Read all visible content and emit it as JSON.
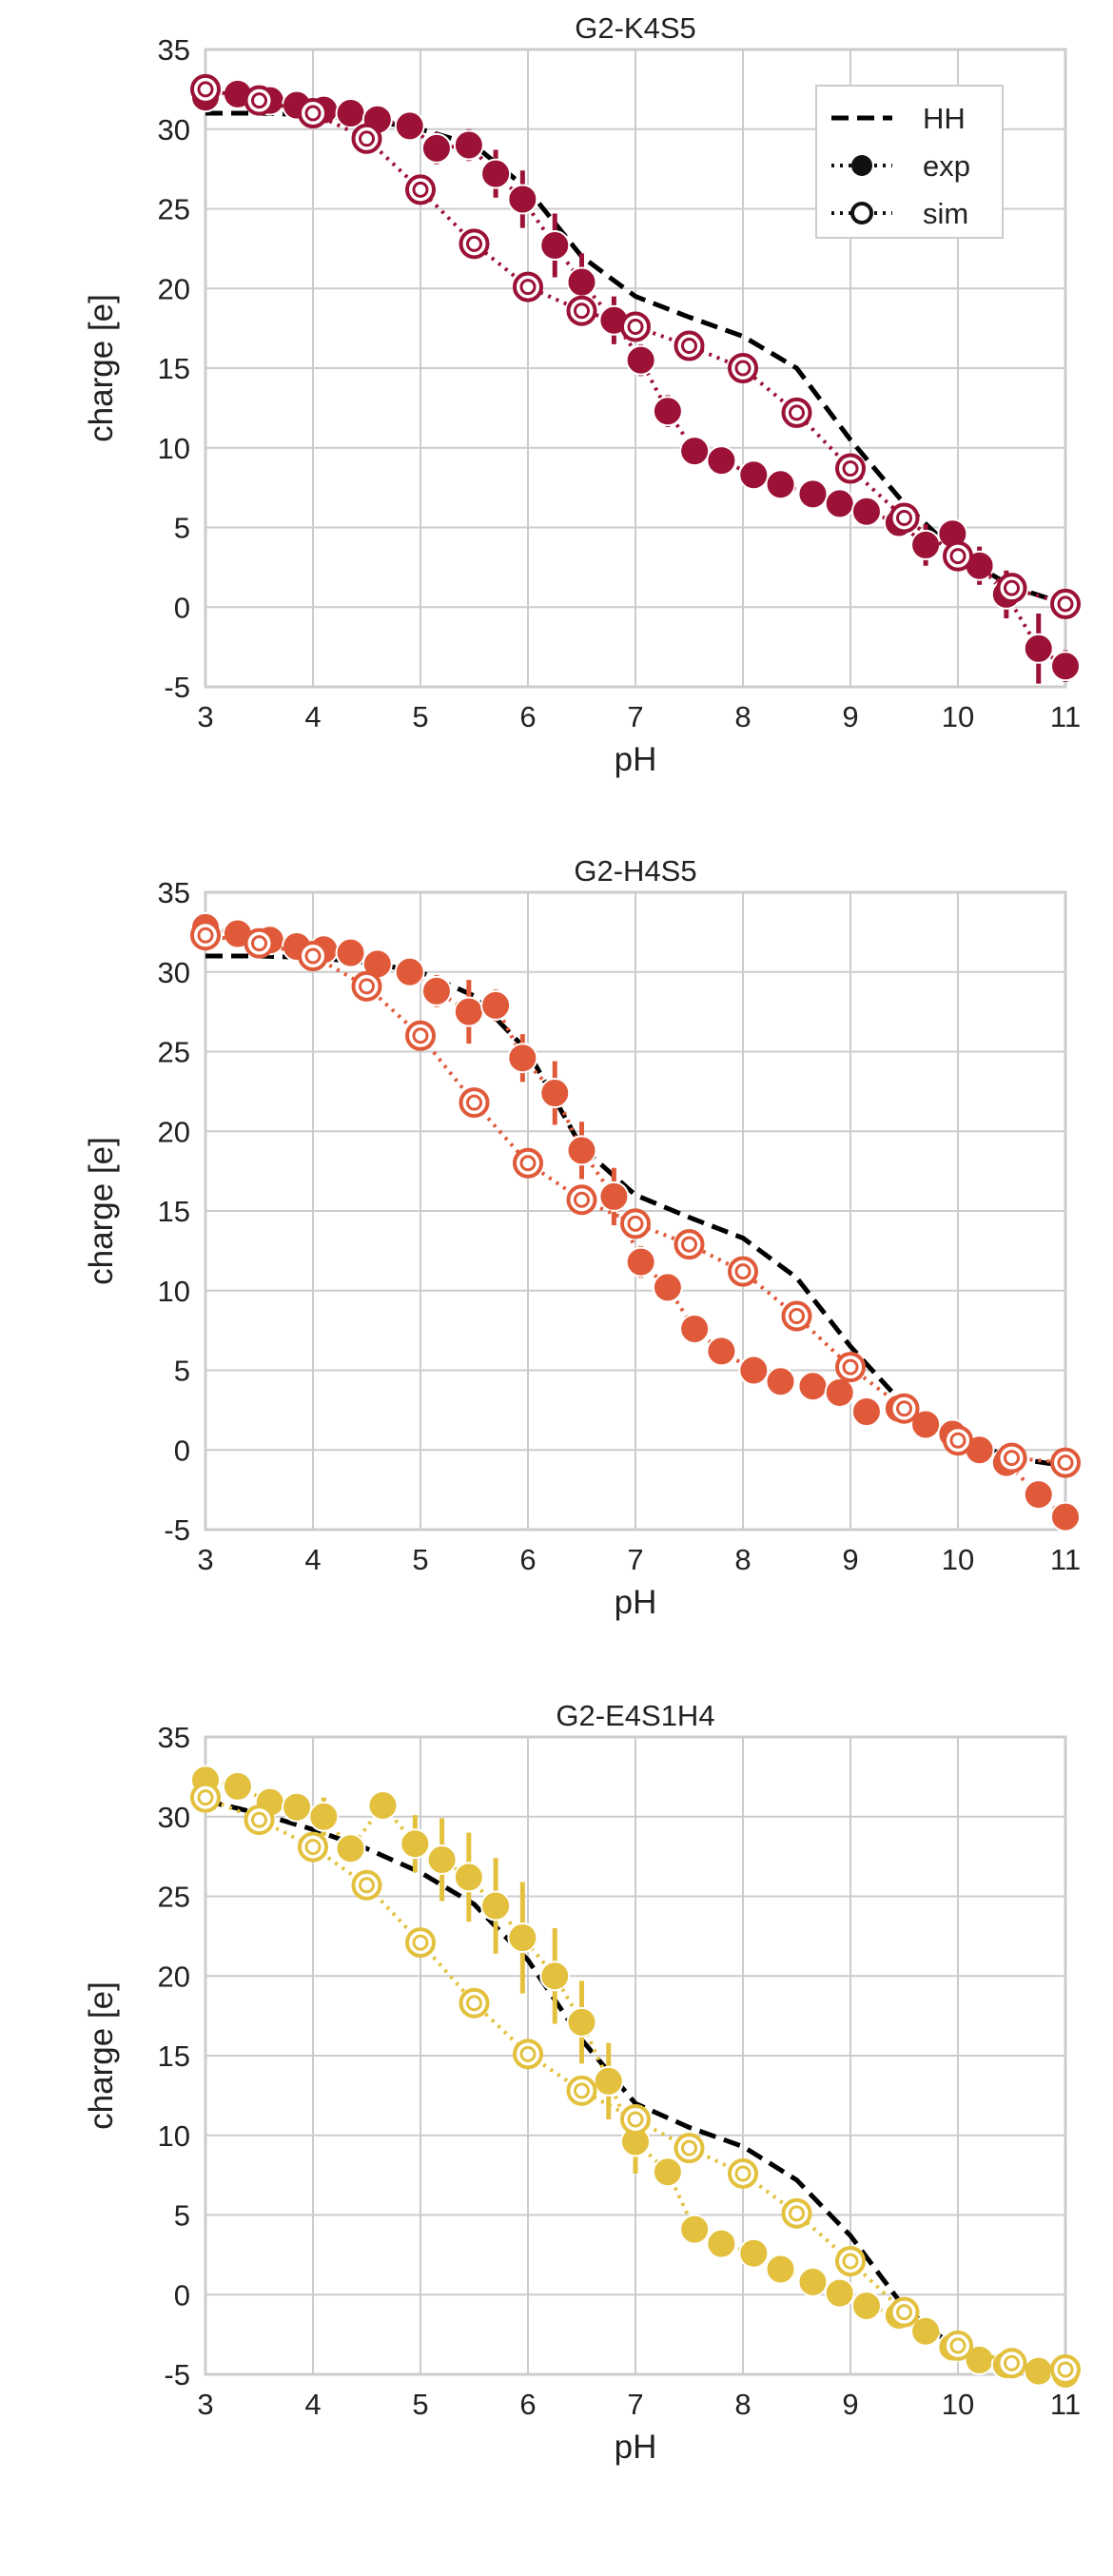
{
  "colors": {
    "hh": "#000000",
    "grid": "#cccccc",
    "frame": "#cccccc"
  },
  "chart_data": [
    {
      "type": "line",
      "title": "G2-K4S5",
      "xlabel": "pH",
      "ylabel": "charge [e]",
      "xlim": [
        3,
        11
      ],
      "ylim": [
        -5,
        35
      ],
      "xticks": [
        3,
        4,
        5,
        6,
        7,
        8,
        9,
        10,
        11
      ],
      "yticks": [
        -5,
        0,
        5,
        10,
        15,
        20,
        25,
        30,
        35
      ],
      "grid": true,
      "color": "#9b1236",
      "legend": {
        "placement": "top-right",
        "entries": [
          "HH",
          "exp",
          "sim"
        ]
      },
      "series": [
        {
          "name": "HH",
          "style": "dashed",
          "x": [
            3.0,
            3.5,
            4.0,
            4.5,
            5.0,
            5.5,
            6.0,
            6.5,
            7.0,
            7.5,
            8.0,
            8.5,
            9.0,
            9.5,
            10.0,
            10.5,
            11.0
          ],
          "y": [
            31.0,
            31.0,
            30.9,
            30.6,
            30.0,
            29.0,
            26.2,
            22.0,
            19.5,
            18.2,
            17.0,
            15.0,
            10.5,
            6.5,
            3.3,
            1.3,
            0.2
          ]
        },
        {
          "name": "exp",
          "style": "dotted-filled",
          "x": [
            3.0,
            3.3,
            3.6,
            3.85,
            4.1,
            4.35,
            4.6,
            4.9,
            5.15,
            5.45,
            5.7,
            5.95,
            6.25,
            6.5,
            6.8,
            7.05,
            7.3,
            7.55,
            7.8,
            8.1,
            8.35,
            8.65,
            8.9,
            9.15,
            9.45,
            9.7,
            9.95,
            10.2,
            10.45,
            10.75,
            11.0
          ],
          "y": [
            32.0,
            32.2,
            31.8,
            31.5,
            31.2,
            31.0,
            30.6,
            30.2,
            28.8,
            29.0,
            27.2,
            25.6,
            22.7,
            20.4,
            18.0,
            15.5,
            12.3,
            9.8,
            9.2,
            8.3,
            7.7,
            7.1,
            6.5,
            6.0,
            5.3,
            3.9,
            4.6,
            2.6,
            0.8,
            -2.6,
            -3.7
          ],
          "errors": [
            0.4,
            0.3,
            0.4,
            0.3,
            0.4,
            0.3,
            0.4,
            0.4,
            1.0,
            1.0,
            1.5,
            1.8,
            2.0,
            1.8,
            1.5,
            1.0,
            1.0,
            0.5,
            0.5,
            0.5,
            0.5,
            0.5,
            0.5,
            0.5,
            0.5,
            1.3,
            0.6,
            1.2,
            1.5,
            2.2,
            1.0
          ]
        },
        {
          "name": "sim",
          "style": "dotted-open",
          "x": [
            3.0,
            3.5,
            4.0,
            4.5,
            5.0,
            5.5,
            6.0,
            6.5,
            7.0,
            7.5,
            8.0,
            8.5,
            9.0,
            9.5,
            10.0,
            10.5,
            11.0
          ],
          "y": [
            32.5,
            31.8,
            31.0,
            29.4,
            26.2,
            22.8,
            20.1,
            18.6,
            17.6,
            16.4,
            15.0,
            12.2,
            8.7,
            5.6,
            3.2,
            1.2,
            0.2
          ]
        }
      ]
    },
    {
      "type": "line",
      "title": "G2-H4S5",
      "xlabel": "pH",
      "ylabel": "charge [e]",
      "xlim": [
        3,
        11
      ],
      "ylim": [
        -5,
        35
      ],
      "xticks": [
        3,
        4,
        5,
        6,
        7,
        8,
        9,
        10,
        11
      ],
      "yticks": [
        -5,
        0,
        5,
        10,
        15,
        20,
        25,
        30,
        35
      ],
      "grid": true,
      "color": "#e05a3a",
      "series": [
        {
          "name": "HH",
          "style": "dashed",
          "x": [
            3.0,
            3.5,
            4.0,
            4.5,
            5.0,
            5.5,
            6.0,
            6.5,
            7.0,
            7.5,
            8.0,
            8.5,
            9.0,
            9.5,
            10.0,
            10.5,
            11.0
          ],
          "y": [
            31.0,
            31.0,
            30.9,
            30.6,
            30.0,
            28.5,
            25.0,
            19.0,
            16.0,
            14.6,
            13.3,
            10.8,
            6.5,
            2.8,
            0.8,
            -0.5,
            -1.0
          ]
        },
        {
          "name": "exp",
          "style": "dotted-filled",
          "x": [
            3.0,
            3.3,
            3.6,
            3.85,
            4.1,
            4.35,
            4.6,
            4.9,
            5.15,
            5.45,
            5.7,
            5.95,
            6.25,
            6.5,
            6.8,
            7.05,
            7.3,
            7.55,
            7.8,
            8.1,
            8.35,
            8.65,
            8.9,
            9.15,
            9.45,
            9.7,
            9.95,
            10.2,
            10.45,
            10.75,
            11.0
          ],
          "y": [
            32.8,
            32.4,
            32.0,
            31.6,
            31.4,
            31.2,
            30.5,
            30.0,
            28.8,
            27.5,
            27.9,
            24.6,
            22.4,
            18.8,
            15.9,
            11.8,
            10.2,
            7.6,
            6.2,
            5.0,
            4.3,
            4.0,
            3.6,
            2.4,
            2.6,
            1.6,
            1.0,
            0.0,
            -0.8,
            -2.8,
            -4.2
          ],
          "errors": [
            0.4,
            0.3,
            0.4,
            0.3,
            0.4,
            0.3,
            0.4,
            0.4,
            1.0,
            2.0,
            1.0,
            1.5,
            2.0,
            1.8,
            1.8,
            1.0,
            0.6,
            0.6,
            0.6,
            0.5,
            0.5,
            0.5,
            0.5,
            0.5,
            0.5,
            0.5,
            0.5,
            0.5,
            0.8,
            0.8,
            0.8
          ]
        },
        {
          "name": "sim",
          "style": "dotted-open",
          "x": [
            3.0,
            3.5,
            4.0,
            4.5,
            5.0,
            5.5,
            6.0,
            6.5,
            7.0,
            7.5,
            8.0,
            8.5,
            9.0,
            9.5,
            10.0,
            10.5,
            11.0
          ],
          "y": [
            32.3,
            31.8,
            31.0,
            29.1,
            26.0,
            21.8,
            18.0,
            15.7,
            14.2,
            12.9,
            11.2,
            8.4,
            5.2,
            2.6,
            0.6,
            -0.5,
            -0.8
          ]
        }
      ]
    },
    {
      "type": "line",
      "title": "G2-E4S1H4",
      "xlabel": "pH",
      "ylabel": "charge [e]",
      "xlim": [
        3,
        11
      ],
      "ylim": [
        -5,
        35
      ],
      "xticks": [
        3,
        4,
        5,
        6,
        7,
        8,
        9,
        10,
        11
      ],
      "yticks": [
        -5,
        0,
        5,
        10,
        15,
        20,
        25,
        30,
        35
      ],
      "grid": true,
      "color": "#e3c13e",
      "series": [
        {
          "name": "HH",
          "style": "dashed",
          "x": [
            3.0,
            3.5,
            4.0,
            4.5,
            5.0,
            5.5,
            6.0,
            6.5,
            7.0,
            7.5,
            8.0,
            8.5,
            9.0,
            9.5,
            10.0,
            10.5,
            11.0
          ],
          "y": [
            31.0,
            30.2,
            29.2,
            28.0,
            26.5,
            24.5,
            21.0,
            16.0,
            12.0,
            10.5,
            9.3,
            7.2,
            3.7,
            -0.8,
            -3.5,
            -4.3,
            -4.8
          ]
        },
        {
          "name": "exp",
          "style": "dotted-filled",
          "x": [
            3.0,
            3.3,
            3.6,
            3.85,
            4.1,
            4.35,
            4.65,
            4.95,
            5.2,
            5.45,
            5.7,
            5.95,
            6.25,
            6.5,
            6.75,
            7.0,
            7.3,
            7.55,
            7.8,
            8.1,
            8.35,
            8.65,
            8.9,
            9.15,
            9.45,
            9.7,
            9.95,
            10.2,
            10.45,
            10.75,
            11.0
          ],
          "y": [
            32.3,
            31.9,
            30.9,
            30.6,
            30.0,
            28.0,
            30.7,
            28.3,
            27.3,
            26.2,
            24.4,
            22.4,
            20.0,
            17.1,
            13.4,
            9.6,
            7.7,
            4.1,
            3.2,
            2.6,
            1.6,
            0.8,
            0.1,
            -0.7,
            -1.3,
            -2.3,
            -3.3,
            -4.1,
            -4.4,
            -4.8,
            -5.0
          ],
          "errors": [
            0.5,
            0.4,
            0.4,
            0.6,
            1.2,
            0.6,
            0.5,
            1.8,
            2.6,
            2.8,
            3.0,
            3.5,
            3.0,
            2.6,
            2.4,
            2.0,
            0.7,
            0.5,
            0.5,
            0.5,
            0.5,
            0.5,
            0.5,
            0.5,
            0.5,
            0.5,
            0.5,
            0.5,
            0.5,
            0.5,
            0.5
          ]
        },
        {
          "name": "sim",
          "style": "dotted-open",
          "x": [
            3.0,
            3.5,
            4.0,
            4.5,
            5.0,
            5.5,
            6.0,
            6.5,
            7.0,
            7.5,
            8.0,
            8.5,
            9.0,
            9.5,
            10.0,
            10.5,
            11.0
          ],
          "y": [
            31.2,
            29.8,
            28.1,
            25.7,
            22.1,
            18.3,
            15.1,
            12.8,
            11.0,
            9.2,
            7.6,
            5.1,
            2.1,
            -1.1,
            -3.2,
            -4.3,
            -4.7
          ]
        }
      ]
    }
  ]
}
